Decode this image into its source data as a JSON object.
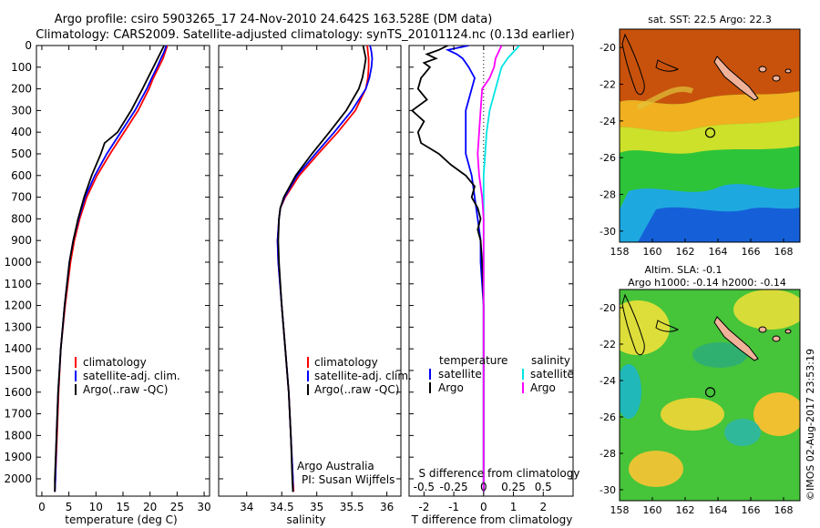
{
  "title": {
    "line1": "Argo profile: csiro 5903265_17 24-Nov-2010 24.642S 163.528E (DM data)",
    "line2": "Climatology: CARS2009. Satellite-adjusted climatology: synTS_20101124.nc (0.13d earlier)"
  },
  "colors": {
    "climatology": "#ff0000",
    "satellite": "#0000ff",
    "argo": "#000000",
    "sal_satellite": "#00e5e5",
    "sal_argo": "#ff00ff"
  },
  "chart_data": [
    {
      "id": "temperature",
      "type": "line",
      "xlabel": "temperature (deg C)",
      "xlim": [
        -1,
        31
      ],
      "ylim": [
        2080,
        0
      ],
      "xticks": [
        0,
        5,
        10,
        15,
        20,
        25,
        30
      ],
      "yticks": [
        0,
        100,
        200,
        300,
        400,
        500,
        600,
        700,
        800,
        900,
        1000,
        1100,
        1200,
        1300,
        1400,
        1500,
        1600,
        1700,
        1800,
        1900,
        2000
      ],
      "legend": {
        "placement": "middle",
        "entries": [
          "climatology",
          "satellite-adj. clim.",
          "Argo(..raw -QC)"
        ]
      },
      "series": [
        {
          "name": "climatology",
          "key": "climatology",
          "depth": [
            0,
            30,
            60,
            100,
            150,
            200,
            300,
            400,
            500,
            600,
            700,
            800,
            900,
            1000,
            1200,
            1400,
            1600,
            1800,
            2000,
            2060
          ],
          "values": [
            23.2,
            22.8,
            22.4,
            21.6,
            20.6,
            19.8,
            17.8,
            15.2,
            12.6,
            10.2,
            8.3,
            7.0,
            6.0,
            5.3,
            4.3,
            3.5,
            3.1,
            2.8,
            2.5,
            2.4
          ]
        },
        {
          "name": "satellite-adj. clim.",
          "key": "satellite",
          "depth": [
            0,
            30,
            60,
            100,
            150,
            200,
            300,
            400,
            500,
            600,
            700,
            800,
            900,
            1000,
            1200,
            1400,
            1600,
            1800,
            2000,
            2060
          ],
          "values": [
            23.0,
            22.6,
            22.0,
            21.3,
            20.3,
            19.4,
            17.2,
            14.6,
            12.0,
            9.8,
            8.0,
            6.8,
            5.8,
            5.1,
            4.2,
            3.5,
            3.0,
            2.7,
            2.5,
            2.4
          ]
        },
        {
          "name": "Argo(..raw -QC)",
          "key": "argo",
          "depth": [
            0,
            30,
            60,
            100,
            150,
            200,
            300,
            400,
            450,
            500,
            600,
            700,
            800,
            900,
            1000,
            1200,
            1400,
            1600,
            1800,
            2000,
            2060
          ],
          "values": [
            22.6,
            22.0,
            21.4,
            20.6,
            19.6,
            18.6,
            16.5,
            14.0,
            11.6,
            10.9,
            9.2,
            7.8,
            6.7,
            5.8,
            5.1,
            4.2,
            3.5,
            3.0,
            2.7,
            2.4,
            2.4
          ]
        }
      ]
    },
    {
      "id": "salinity",
      "type": "line",
      "xlabel": "salinity",
      "xlim": [
        33.6,
        36.2
      ],
      "ylim": [
        2080,
        0
      ],
      "xticks": [
        34,
        34.5,
        35,
        35.5,
        36
      ],
      "legend": {
        "placement": "middle",
        "entries": [
          "climatology",
          "satellite-adj. clim.",
          "Argo(..raw -QC)"
        ]
      },
      "annotation": {
        "line1": "Argo Australia",
        "line2": "PI: Susan Wijffels"
      },
      "series": [
        {
          "name": "climatology",
          "key": "climatology",
          "depth": [
            0,
            30,
            60,
            100,
            150,
            200,
            300,
            400,
            500,
            600,
            700,
            750,
            800,
            900,
            1000,
            1200,
            1400,
            1600,
            1800,
            2000,
            2060
          ],
          "values": [
            35.72,
            35.73,
            35.74,
            35.74,
            35.73,
            35.7,
            35.55,
            35.3,
            35.02,
            34.75,
            34.55,
            34.48,
            34.46,
            34.44,
            34.45,
            34.5,
            34.55,
            34.6,
            34.63,
            34.66,
            34.67
          ]
        },
        {
          "name": "satellite-adj. clim.",
          "key": "satellite",
          "depth": [
            0,
            30,
            60,
            100,
            150,
            200,
            300,
            400,
            500,
            600,
            700,
            750,
            800,
            900,
            1000,
            1200,
            1400,
            1600,
            1800,
            2000,
            2060
          ],
          "values": [
            35.76,
            35.78,
            35.79,
            35.78,
            35.75,
            35.7,
            35.5,
            35.25,
            34.98,
            34.72,
            34.54,
            34.48,
            34.46,
            34.44,
            34.45,
            34.5,
            34.55,
            34.6,
            34.63,
            34.66,
            34.66
          ]
        },
        {
          "name": "Argo(..raw -QC)",
          "key": "argo",
          "depth": [
            0,
            30,
            60,
            100,
            150,
            200,
            300,
            400,
            500,
            600,
            700,
            750,
            800,
            900,
            1000,
            1200,
            1400,
            1600,
            1800,
            2000,
            2060
          ],
          "values": [
            35.66,
            35.68,
            35.7,
            35.68,
            35.65,
            35.6,
            35.42,
            35.18,
            34.93,
            34.7,
            34.53,
            34.48,
            34.46,
            34.45,
            34.46,
            34.5,
            34.55,
            34.6,
            34.63,
            34.65,
            34.66
          ]
        }
      ]
    },
    {
      "id": "difference",
      "type": "line",
      "xlabel": "T difference from climatology",
      "xlabel_top": "S difference from climatology",
      "xlim": [
        -2.5,
        3.0
      ],
      "ylim": [
        2080,
        0
      ],
      "xticks": [
        -2,
        -1,
        0,
        1,
        2
      ],
      "xticks_salinity": [
        {
          "label": "-0.5",
          "at": -2
        },
        {
          "label": "-0.25",
          "at": -1
        },
        {
          "label": "0",
          "at": 0
        },
        {
          "label": "0.25",
          "at": 1
        },
        {
          "label": "0.5",
          "at": 2
        }
      ],
      "legend": {
        "placement": "middle",
        "temperature_title": "temperature",
        "salinity_title": "salinity",
        "entries": [
          "satellite",
          "Argo",
          "satellite",
          "Argo"
        ]
      },
      "series": [
        {
          "name": "temperature satellite",
          "key": "satellite",
          "depth": [
            0,
            20,
            40,
            60,
            100,
            150,
            200,
            300,
            400,
            500,
            600,
            700,
            800,
            900,
            1000,
            1200,
            1400,
            1600,
            1800,
            2000,
            2060
          ],
          "values": [
            -0.5,
            -1.2,
            -0.9,
            -0.7,
            -0.5,
            -0.3,
            -0.4,
            -0.6,
            -0.6,
            -0.6,
            -0.4,
            -0.3,
            -0.2,
            -0.1,
            -0.1,
            0,
            0,
            0,
            0,
            0,
            0
          ]
        },
        {
          "name": "temperature Argo",
          "key": "argo",
          "depth": [
            0,
            20,
            40,
            60,
            80,
            100,
            150,
            200,
            250,
            300,
            350,
            400,
            450,
            500,
            550,
            600,
            650,
            700,
            750,
            800,
            850,
            900,
            1000,
            1200,
            1400,
            1600,
            1800,
            2000,
            2060
          ],
          "values": [
            -1.2,
            -1.5,
            -1.9,
            -1.6,
            -2.0,
            -1.8,
            -2.1,
            -2.2,
            -1.9,
            -2.4,
            -2.0,
            -2.2,
            -2.1,
            -1.5,
            -1.1,
            -0.6,
            -0.3,
            -0.4,
            -0.2,
            -0.1,
            -0.2,
            -0.1,
            -0.05,
            0,
            0,
            0,
            0,
            0,
            0
          ]
        },
        {
          "name": "salinity satellite",
          "key": "sal_satellite",
          "depth": [
            0,
            30,
            60,
            100,
            150,
            200,
            300,
            400,
            500,
            600,
            700,
            800,
            900,
            1000,
            1200,
            1400,
            1600,
            1800,
            2000,
            2060
          ],
          "values": [
            1.2,
            1.0,
            0.8,
            0.6,
            0.5,
            0.4,
            0.2,
            0.1,
            0.05,
            0,
            0,
            0,
            0,
            0,
            0,
            0,
            0,
            0,
            0,
            0
          ]
        },
        {
          "name": "salinity Argo",
          "key": "sal_argo",
          "depth": [
            0,
            30,
            60,
            100,
            150,
            200,
            300,
            400,
            500,
            600,
            700,
            800,
            900,
            1000,
            1200,
            1400,
            1600,
            1800,
            2000,
            2060
          ],
          "values": [
            0.6,
            0.5,
            0.4,
            0.35,
            0.2,
            -0.05,
            -0.1,
            -0.15,
            -0.2,
            -0.15,
            -0.05,
            0,
            0,
            0,
            0,
            0,
            0,
            0,
            0,
            0
          ]
        }
      ]
    },
    {
      "id": "sst-map",
      "type": "heatmap",
      "title": "sat. SST: 22.5 Argo: 22.3",
      "xticks": [
        158,
        160,
        162,
        164,
        166,
        168
      ],
      "yticks": [
        -20,
        -22,
        -24,
        -26,
        -28,
        -30
      ],
      "xlim": [
        158,
        169
      ],
      "ylim": [
        -19,
        -30.6
      ],
      "profile_location": [
        163.528,
        -24.642
      ]
    },
    {
      "id": "sla-map",
      "type": "heatmap",
      "title_line1": "Altim. SLA: -0.1",
      "title_line2": "Argo h1000: -0.14 h2000: -0.14",
      "xticks": [
        158,
        160,
        162,
        164,
        166,
        168
      ],
      "yticks": [
        -20,
        -22,
        -24,
        -26,
        -28,
        -30
      ],
      "xlim": [
        158,
        169
      ],
      "ylim": [
        -19,
        -30.6
      ],
      "profile_location": [
        163.528,
        -24.642
      ]
    }
  ],
  "footer": {
    "credit": "©IMOS 02-Aug-2017 23:53:19"
  }
}
